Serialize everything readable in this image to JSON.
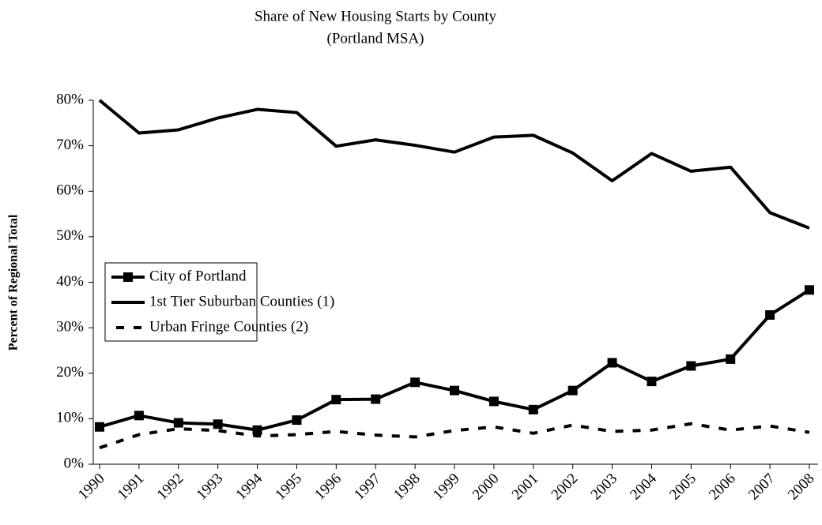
{
  "chart_data": {
    "type": "line",
    "title": "Share of New Housing Starts by County",
    "subtitle": "(Portland MSA)",
    "y_label": "Percent of Regional Total",
    "categories": [
      "1990",
      "1991",
      "1992",
      "1993",
      "1994",
      "1995",
      "1996",
      "1997",
      "1998",
      "1999",
      "2000",
      "2001",
      "2002",
      "2003",
      "2004",
      "2005",
      "2006",
      "2007",
      "2008"
    ],
    "series": [
      {
        "name": "City of Portland",
        "color": "#000000",
        "style": "solid-square",
        "values": [
          8.2,
          10.7,
          9.1,
          8.8,
          7.5,
          9.7,
          14.2,
          14.3,
          18.0,
          16.2,
          13.8,
          12.0,
          16.2,
          22.3,
          18.2,
          21.6,
          23.1,
          32.8,
          38.3
        ]
      },
      {
        "name": "1st Tier Suburban Counties (1)",
        "color": "#000000",
        "style": "solid",
        "values": [
          80.0,
          72.8,
          73.5,
          76.1,
          78.0,
          77.3,
          69.9,
          71.3,
          70.1,
          68.6,
          71.9,
          72.3,
          68.4,
          62.3,
          68.3,
          64.4,
          65.3,
          55.3,
          51.9
        ]
      },
      {
        "name": "Urban Fringe Counties (2)",
        "color": "#000000",
        "style": "dashed",
        "values": [
          3.6,
          6.5,
          7.8,
          7.4,
          6.2,
          6.5,
          7.2,
          6.4,
          6.0,
          7.4,
          8.2,
          6.8,
          8.6,
          7.2,
          7.5,
          8.9,
          7.5,
          8.4,
          7.0
        ]
      }
    ],
    "ylim": [
      0,
      80
    ],
    "yticks": [
      {
        "value": 0,
        "label": "0%"
      },
      {
        "value": 10,
        "label": "10%"
      },
      {
        "value": 20,
        "label": "20%"
      },
      {
        "value": 30,
        "label": "30%"
      },
      {
        "value": 40,
        "label": "40%"
      },
      {
        "value": 50,
        "label": "50%"
      },
      {
        "value": 60,
        "label": "60%"
      },
      {
        "value": 70,
        "label": "70%"
      },
      {
        "value": 80,
        "label": "80%"
      }
    ],
    "grid": false,
    "legend": "center-left"
  }
}
